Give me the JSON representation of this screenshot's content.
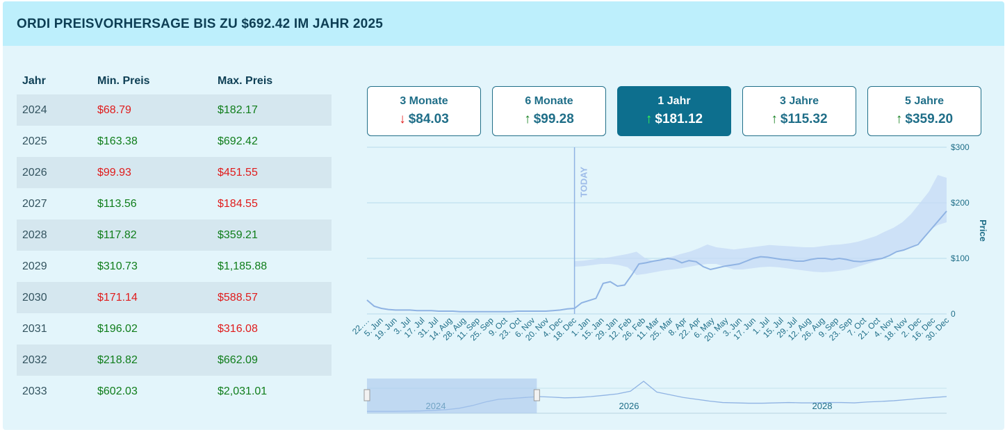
{
  "title": "ORDI PREISVORHERSAGE BIS ZU $692.42 IM JAHR 2025",
  "table": {
    "headers": [
      "Jahr",
      "Min. Preis",
      "Max. Preis"
    ],
    "rows": [
      {
        "year": "2024",
        "min": "$68.79",
        "max": "$182.17",
        "min_trend": "neg",
        "max_trend": "pos"
      },
      {
        "year": "2025",
        "min": "$163.38",
        "max": "$692.42",
        "min_trend": "pos",
        "max_trend": "pos"
      },
      {
        "year": "2026",
        "min": "$99.93",
        "max": "$451.55",
        "min_trend": "neg",
        "max_trend": "neg"
      },
      {
        "year": "2027",
        "min": "$113.56",
        "max": "$184.55",
        "min_trend": "pos",
        "max_trend": "neg"
      },
      {
        "year": "2028",
        "min": "$117.82",
        "max": "$359.21",
        "min_trend": "pos",
        "max_trend": "pos"
      },
      {
        "year": "2029",
        "min": "$310.73",
        "max": "$1,185.88",
        "min_trend": "pos",
        "max_trend": "pos"
      },
      {
        "year": "2030",
        "min": "$171.14",
        "max": "$588.57",
        "min_trend": "neg",
        "max_trend": "neg"
      },
      {
        "year": "2031",
        "min": "$196.02",
        "max": "$316.08",
        "min_trend": "pos",
        "max_trend": "neg"
      },
      {
        "year": "2032",
        "min": "$218.82",
        "max": "$662.09",
        "min_trend": "pos",
        "max_trend": "pos"
      },
      {
        "year": "2033",
        "min": "$602.03",
        "max": "$2,031.01",
        "min_trend": "pos",
        "max_trend": "pos"
      }
    ]
  },
  "tabs": [
    {
      "label": "3 Monate",
      "value": "$84.03",
      "direction": "down",
      "active": false
    },
    {
      "label": "6 Monate",
      "value": "$99.28",
      "direction": "up",
      "active": false
    },
    {
      "label": "1 Jahr",
      "value": "$181.12",
      "direction": "up",
      "active": true
    },
    {
      "label": "3 Jahre",
      "value": "$115.32",
      "direction": "up",
      "active": false
    },
    {
      "label": "5 Jahre",
      "value": "$359.20",
      "direction": "up",
      "active": false
    }
  ],
  "colors": {
    "positive": "#0f7d1a",
    "negative": "#e01b1b",
    "accent": "#0d6f8e",
    "line": "#8fb3e3",
    "band": "#c5daf5"
  },
  "chart_data": {
    "type": "line",
    "ylabel": "Price",
    "ylim": [
      0,
      300
    ],
    "y_ticks": [
      {
        "value": 0,
        "label": "0"
      },
      {
        "value": 100,
        "label": "$100"
      },
      {
        "value": 200,
        "label": "$200"
      },
      {
        "value": 300,
        "label": "$300"
      }
    ],
    "annotation": "TODAY",
    "today_index": 29,
    "x_labels": [
      "22.…",
      "5. Jun",
      "19. Jun",
      "3. Jul",
      "17. Jul",
      "31. Jul",
      "14. Aug",
      "28. Aug",
      "11. Sep",
      "25. Sep",
      "9. Oct",
      "23. Oct",
      "6. Nov",
      "20. Nov",
      "4. Dec",
      "18. Dec",
      "1. Jan",
      "15. Jan",
      "29. Jan",
      "12. Feb",
      "26. Feb",
      "11. Mar",
      "25. Mar",
      "8. Apr",
      "22. Apr",
      "6. May",
      "20. May",
      "3. Jun",
      "17. Jun",
      "1. Jul",
      "15. Jul",
      "29. Jul",
      "12. Aug",
      "26. Aug",
      "9. Sep",
      "23. Sep",
      "7. Oct",
      "21. Oct",
      "4. Nov",
      "18. Nov",
      "2. Dec",
      "16. Dec",
      "30. Dec"
    ],
    "series": [
      {
        "values": [
          25,
          14,
          10,
          8,
          7,
          7,
          7,
          6,
          6,
          6,
          5,
          5,
          5,
          4,
          4,
          4,
          4,
          4,
          4,
          4,
          4,
          5,
          5,
          5,
          5,
          5,
          6,
          7,
          9,
          10,
          20,
          24,
          28,
          55,
          58,
          50,
          52,
          70,
          90,
          92,
          95,
          97,
          100,
          98,
          92,
          96,
          94,
          85,
          80,
          83,
          86,
          88,
          90,
          95,
          100,
          103,
          102,
          100,
          98,
          97,
          95,
          95,
          98,
          100,
          100,
          98,
          100,
          98,
          95,
          94,
          96,
          98,
          100,
          105,
          112,
          115,
          120,
          125,
          140,
          155,
          170,
          185
        ]
      }
    ],
    "band": {
      "start_index": 29,
      "upper": [
        95,
        96,
        98,
        100,
        102,
        105,
        108,
        112,
        100,
        95,
        100,
        103,
        108,
        112,
        118,
        125,
        120,
        118,
        116,
        118,
        120,
        122,
        124,
        123,
        122,
        121,
        120,
        120,
        122,
        124,
        125,
        127,
        130,
        135,
        140,
        148,
        155,
        165,
        180,
        200,
        220,
        250,
        245
      ],
      "lower": [
        85,
        86,
        88,
        90,
        90,
        88,
        84,
        70,
        72,
        75,
        78,
        80,
        82,
        85,
        88,
        90,
        90,
        85,
        80,
        80,
        82,
        84,
        85,
        84,
        82,
        80,
        78,
        76,
        75,
        76,
        78,
        80,
        85,
        90,
        95,
        100,
        110,
        115,
        120,
        130,
        150,
        160,
        165
      ]
    },
    "navigator": {
      "labels": [
        "2024",
        "2026",
        "2028"
      ],
      "values": [
        3,
        3,
        3,
        4,
        5,
        8,
        12,
        20,
        35,
        55,
        70,
        75,
        80,
        85,
        82,
        78,
        80,
        85,
        92,
        100,
        115,
        170,
        110,
        95,
        80,
        70,
        60,
        52,
        50,
        48,
        48,
        50,
        52,
        50,
        50,
        52,
        52,
        50,
        55,
        58,
        62,
        68,
        75,
        80,
        85
      ]
    }
  }
}
